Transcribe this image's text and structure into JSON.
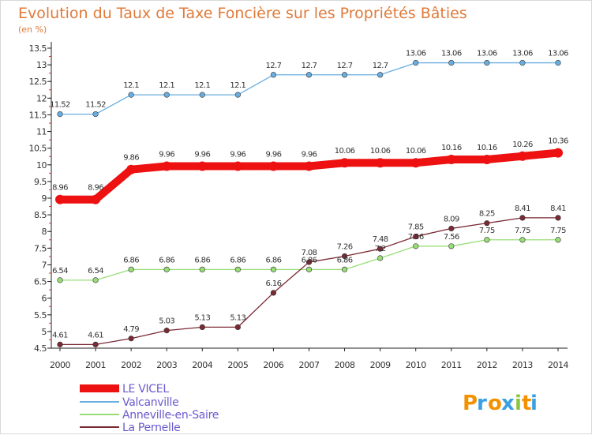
{
  "chart_data": {
    "type": "line",
    "title": "Evolution du Taux de Taxe Foncière sur les Propriétés Bâties",
    "subtitle": "(en %)",
    "x": [
      "2000",
      "2001",
      "2002",
      "2003",
      "2004",
      "2005",
      "2006",
      "2007",
      "2008",
      "2009",
      "2010",
      "2011",
      "2012",
      "2013",
      "2014"
    ],
    "y_ticks": [
      "4.5",
      "5",
      "5.5",
      "6",
      "6.5",
      "7",
      "7.5",
      "8",
      "8.5",
      "9",
      "9.5",
      "10",
      "10.5",
      "11",
      "11.5",
      "12",
      "12.5",
      "13",
      "13.5"
    ],
    "ylim": [
      4.5,
      13.5
    ],
    "grid": false,
    "legend_position": "bottom-left",
    "series": [
      {
        "name": "LE VICEL",
        "color": "#ee1111",
        "values": [
          8.96,
          8.96,
          9.86,
          9.96,
          9.96,
          9.96,
          9.96,
          9.96,
          10.06,
          10.06,
          10.06,
          10.16,
          10.16,
          10.26,
          10.36
        ],
        "labels": [
          "8.96",
          "8.96",
          "9.86",
          "9.96",
          "9.96",
          "9.96",
          "9.96",
          "9.96",
          "10.06",
          "10.06",
          "10.06",
          "10.16",
          "10.16",
          "10.26",
          "10.36"
        ]
      },
      {
        "name": "Valcanville",
        "color": "#6aaee0",
        "values": [
          11.52,
          11.52,
          12.1,
          12.1,
          12.1,
          12.1,
          12.7,
          12.7,
          12.7,
          12.7,
          13.06,
          13.06,
          13.06,
          13.06,
          13.06
        ],
        "labels": [
          "11.52",
          "11.52",
          "12.1",
          "12.1",
          "12.1",
          "12.1",
          "12.7",
          "12.7",
          "12.7",
          "12.7",
          "13.06",
          "13.06",
          "13.06",
          "13.06",
          "13.06"
        ]
      },
      {
        "name": "Anneville-en-Saire",
        "color": "#99dd77",
        "values": [
          6.54,
          6.54,
          6.86,
          6.86,
          6.86,
          6.86,
          6.86,
          6.86,
          6.86,
          7.2,
          7.56,
          7.56,
          7.75,
          7.75,
          7.75
        ],
        "labels": [
          "6.54",
          "6.54",
          "6.86",
          "6.86",
          "6.86",
          "6.86",
          "6.86",
          "6.86",
          "6.86",
          "7.2",
          "7.56",
          "7.56",
          "7.75",
          "7.75",
          "7.75"
        ]
      },
      {
        "name": "La Pernelle",
        "color": "#7a2a34",
        "values": [
          4.61,
          4.61,
          4.79,
          5.03,
          5.13,
          5.13,
          6.16,
          7.08,
          7.26,
          7.48,
          7.85,
          8.09,
          8.25,
          8.41,
          8.41
        ],
        "labels": [
          "4.61",
          "4.61",
          "4.79",
          "5.03",
          "5.13",
          "5.13",
          "6.16",
          "7.08",
          "7.26",
          "7.48",
          "7.85",
          "8.09",
          "8.25",
          "8.41",
          "8.41"
        ]
      }
    ]
  },
  "logo": {
    "letters": [
      "P",
      "r",
      "o",
      "x",
      "i",
      "t",
      "i"
    ],
    "colors": [
      "#f39200",
      "#3aa0e0",
      "#f39200",
      "#3aa0e0",
      "#8cc63f",
      "#f39200",
      "#3aa0e0"
    ]
  }
}
